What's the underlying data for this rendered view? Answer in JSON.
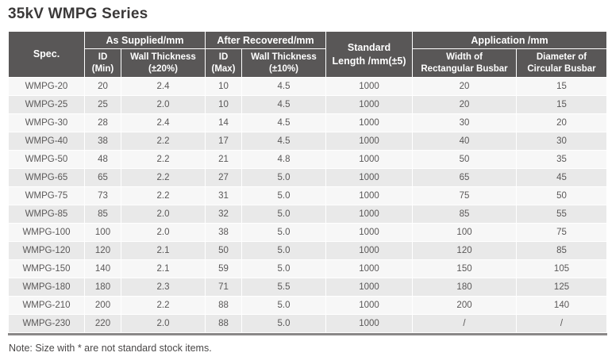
{
  "page": {
    "title": "35kV WMPG Series",
    "note": "Note: Size with * are not standard stock items."
  },
  "table": {
    "header": {
      "spec": "Spec.",
      "as_supplied": {
        "label": "As Supplied/mm",
        "id_col": {
          "line1": "ID",
          "line2": "(Min)"
        },
        "wall_col": {
          "line1": "Wall Thickness",
          "line2": "(±20%)"
        }
      },
      "after_recovered": {
        "label": "After Recovered/mm",
        "id_col": {
          "line1": "ID",
          "line2": "(Max)"
        },
        "wall_col": {
          "line1": "Wall Thickness",
          "line2": "(±10%)"
        }
      },
      "standard_length": {
        "line1": "Standard",
        "line2": "Length /mm(±5)"
      },
      "application": {
        "label": "Application /mm",
        "width_col": {
          "line1": "Width of",
          "line2": "Rectangular Busbar"
        },
        "diameter_col": {
          "line1": "Diameter of",
          "line2": "Circular Busbar"
        }
      }
    },
    "rows": [
      [
        "WMPG-20",
        "20",
        "2.4",
        "10",
        "4.5",
        "1000",
        "20",
        "15"
      ],
      [
        "WMPG-25",
        "25",
        "2.0",
        "10",
        "4.5",
        "1000",
        "20",
        "15"
      ],
      [
        "WMPG-30",
        "28",
        "2.4",
        "14",
        "4.5",
        "1000",
        "30",
        "20"
      ],
      [
        "WMPG-40",
        "38",
        "2.2",
        "17",
        "4.5",
        "1000",
        "40",
        "30"
      ],
      [
        "WMPG-50",
        "48",
        "2.2",
        "21",
        "4.8",
        "1000",
        "50",
        "35"
      ],
      [
        "WMPG-65",
        "65",
        "2.2",
        "27",
        "5.0",
        "1000",
        "65",
        "45"
      ],
      [
        "WMPG-75",
        "73",
        "2.2",
        "31",
        "5.0",
        "1000",
        "75",
        "50"
      ],
      [
        "WMPG-85",
        "85",
        "2.0",
        "32",
        "5.0",
        "1000",
        "85",
        "55"
      ],
      [
        "WMPG-100",
        "100",
        "2.0",
        "38",
        "5.0",
        "1000",
        "100",
        "75"
      ],
      [
        "WMPG-120",
        "120",
        "2.1",
        "50",
        "5.0",
        "1000",
        "120",
        "85"
      ],
      [
        "WMPG-150",
        "140",
        "2.1",
        "59",
        "5.0",
        "1000",
        "150",
        "105"
      ],
      [
        "WMPG-180",
        "180",
        "2.3",
        "71",
        "5.5",
        "1000",
        "180",
        "125"
      ],
      [
        "WMPG-210",
        "200",
        "2.2",
        "88",
        "5.0",
        "1000",
        "200",
        "140"
      ],
      [
        "WMPG-230",
        "220",
        "2.0",
        "88",
        "5.0",
        "1000",
        "/",
        "/"
      ]
    ],
    "colors": {
      "header_bg": "#595757",
      "header_text": "#ffffff",
      "row_light": "#f7f7f7",
      "row_dark": "#e9e9e9",
      "cell_text": "#5a5858",
      "bottom_border": "#8a8888"
    }
  }
}
